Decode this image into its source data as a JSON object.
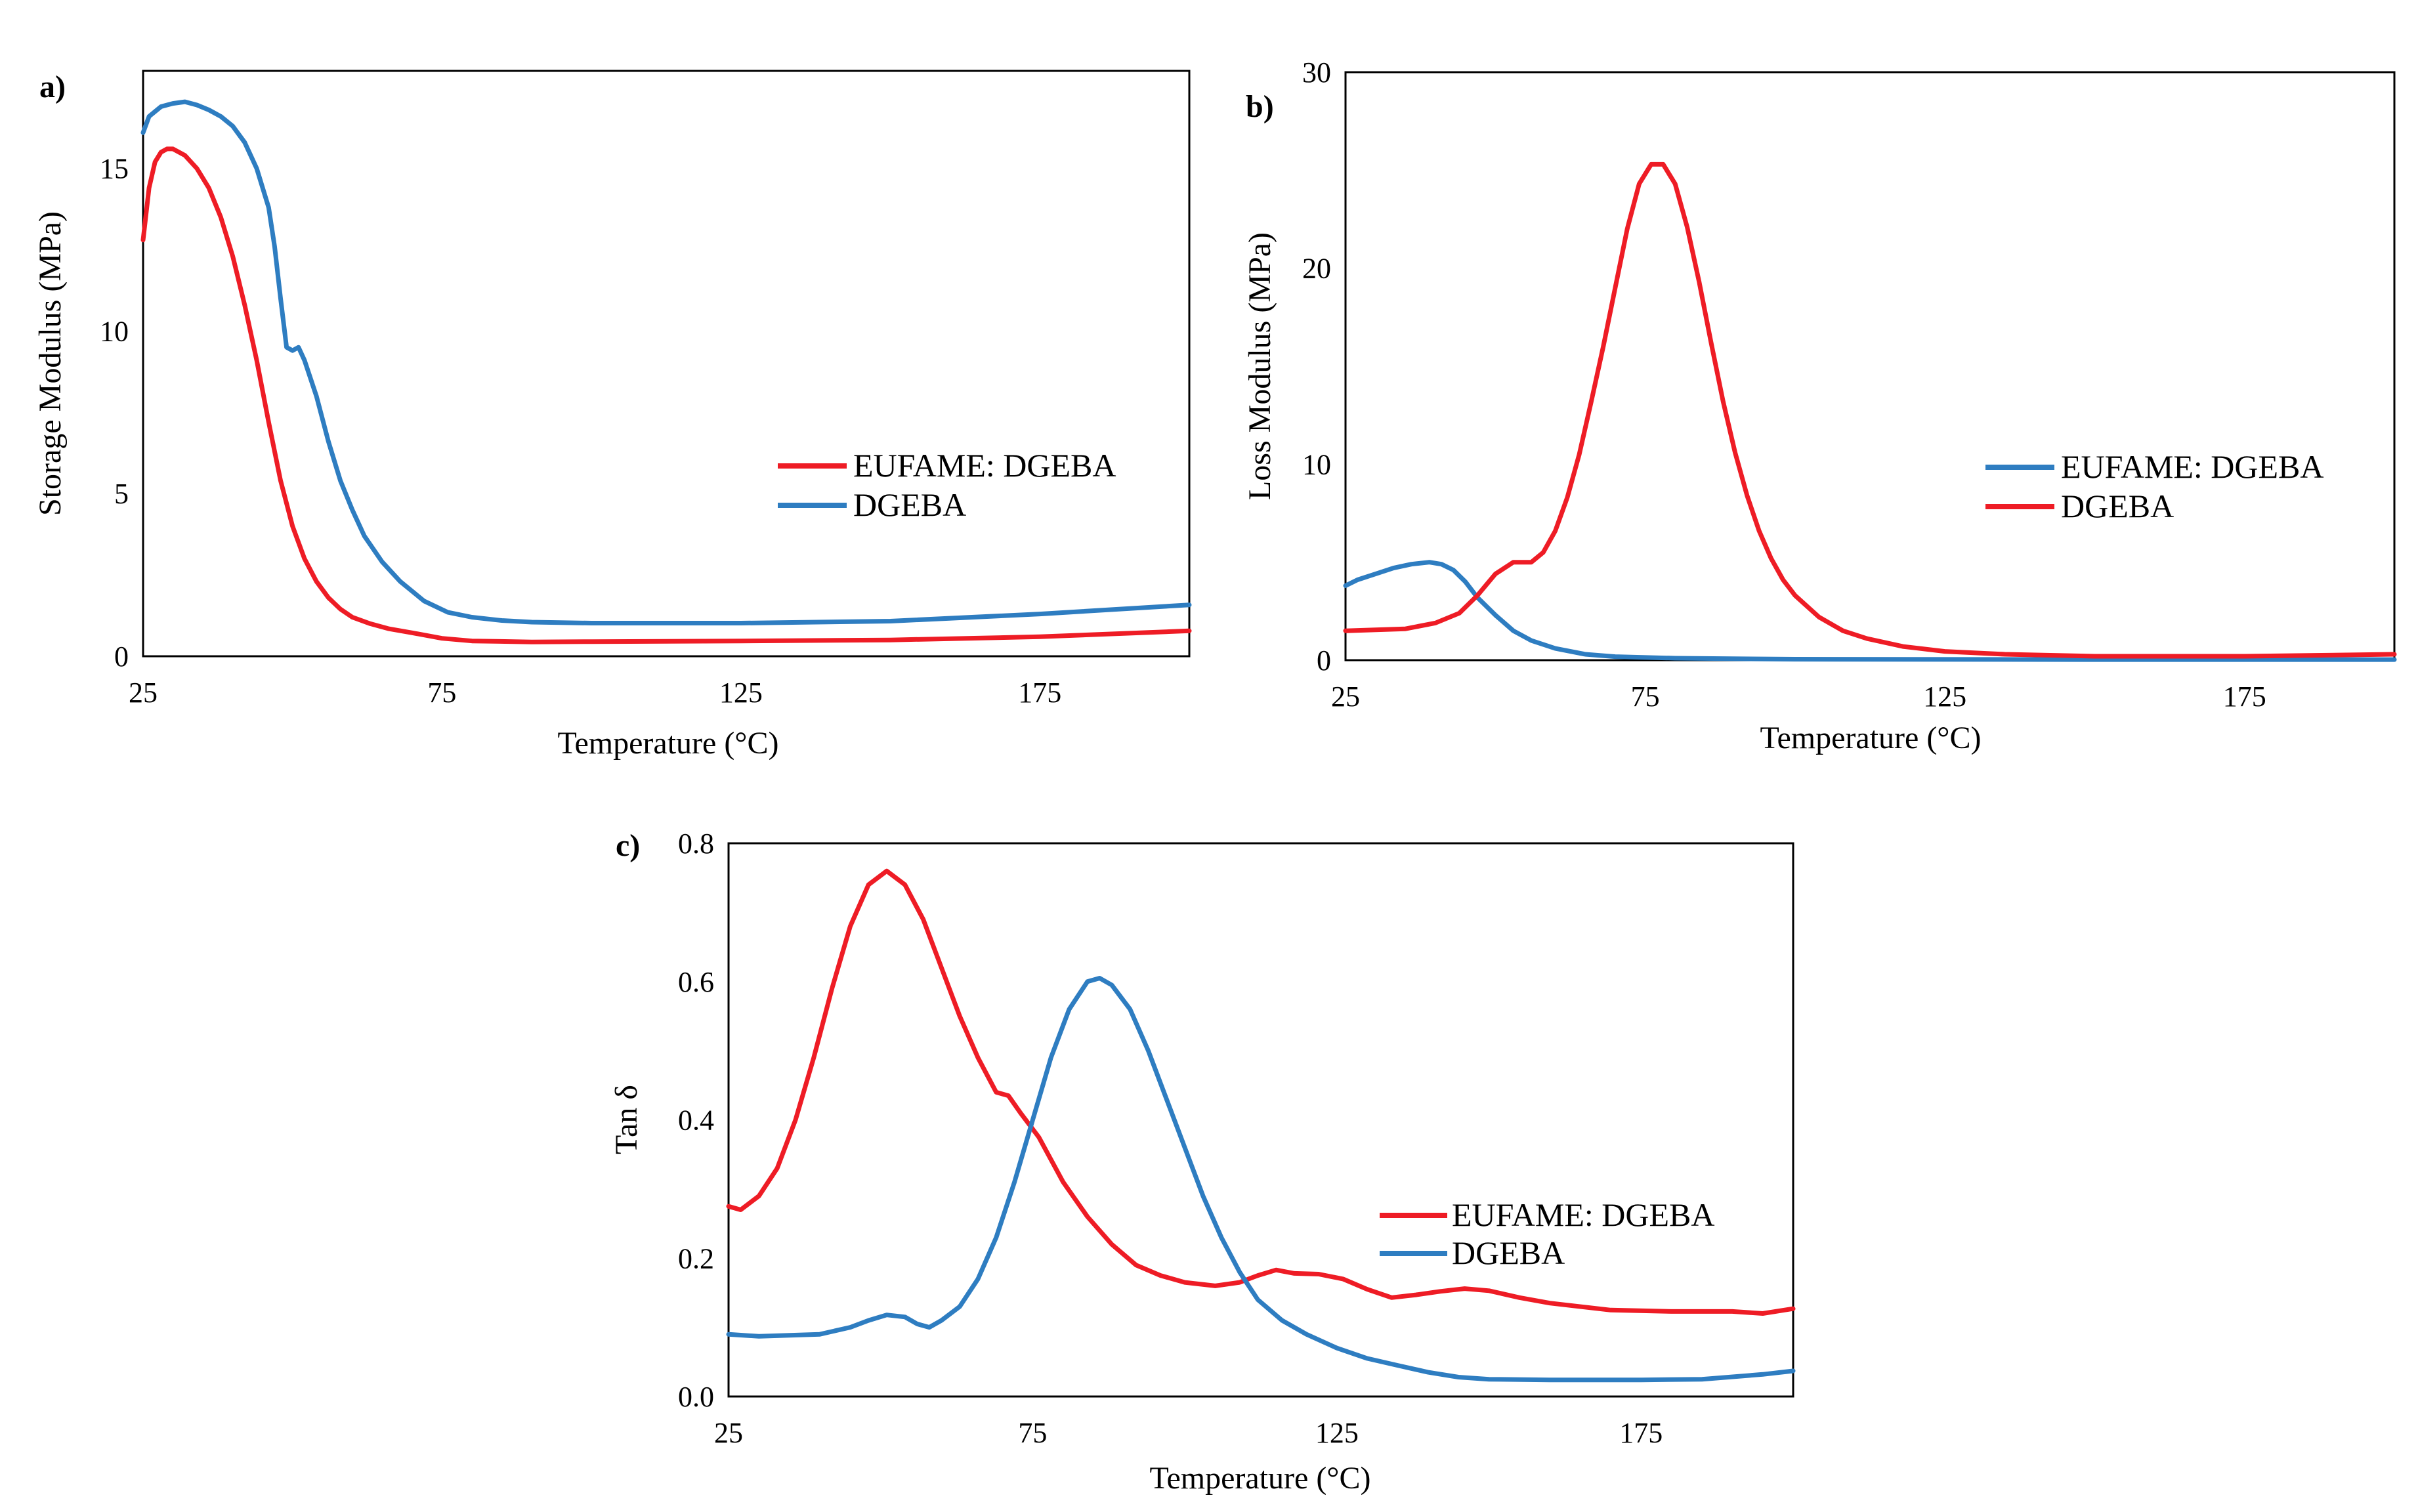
{
  "colors": {
    "red": "#ee1c25",
    "blue": "#2e7dc1",
    "axis": "#000000"
  },
  "chart_data": [
    {
      "panel": "a)",
      "type": "line",
      "xlabel": "Temperature (°C)",
      "ylabel": "Storage Modulus  (MPa)",
      "xlim": [
        25,
        200
      ],
      "ylim": [
        0,
        18
      ],
      "xticks": [
        25,
        75,
        125,
        175
      ],
      "yticks": [
        0,
        5,
        10,
        15
      ],
      "legend_position": "right-middle",
      "series": [
        {
          "name": "EUFAME: DGEBA",
          "color": "red",
          "points": [
            [
              25,
              12.8
            ],
            [
              26,
              14.4
            ],
            [
              27,
              15.2
            ],
            [
              28,
              15.5
            ],
            [
              29,
              15.6
            ],
            [
              30,
              15.6
            ],
            [
              32,
              15.4
            ],
            [
              34,
              15
            ],
            [
              36,
              14.4
            ],
            [
              38,
              13.5
            ],
            [
              40,
              12.3
            ],
            [
              42,
              10.8
            ],
            [
              44,
              9.1
            ],
            [
              46,
              7.2
            ],
            [
              48,
              5.4
            ],
            [
              50,
              4
            ],
            [
              52,
              3
            ],
            [
              54,
              2.3
            ],
            [
              56,
              1.8
            ],
            [
              58,
              1.45
            ],
            [
              60,
              1.2
            ],
            [
              63,
              1
            ],
            [
              66,
              0.85
            ],
            [
              70,
              0.72
            ],
            [
              75,
              0.55
            ],
            [
              80,
              0.47
            ],
            [
              90,
              0.44
            ],
            [
              100,
              0.45
            ],
            [
              125,
              0.47
            ],
            [
              150,
              0.5
            ],
            [
              175,
              0.6
            ],
            [
              200,
              0.78
            ]
          ]
        },
        {
          "name": "DGEBA",
          "color": "blue",
          "points": [
            [
              25,
              16.1
            ],
            [
              26,
              16.6
            ],
            [
              28,
              16.9
            ],
            [
              30,
              17
            ],
            [
              32,
              17.05
            ],
            [
              34,
              16.95
            ],
            [
              36,
              16.8
            ],
            [
              38,
              16.6
            ],
            [
              40,
              16.3
            ],
            [
              42,
              15.8
            ],
            [
              44,
              15
            ],
            [
              46,
              13.8
            ],
            [
              47,
              12.6
            ],
            [
              48,
              11
            ],
            [
              49,
              9.5
            ],
            [
              50,
              9.4
            ],
            [
              51,
              9.5
            ],
            [
              52,
              9.1
            ],
            [
              54,
              8
            ],
            [
              56,
              6.6
            ],
            [
              58,
              5.4
            ],
            [
              60,
              4.5
            ],
            [
              62,
              3.7
            ],
            [
              65,
              2.9
            ],
            [
              68,
              2.3
            ],
            [
              72,
              1.7
            ],
            [
              76,
              1.35
            ],
            [
              80,
              1.2
            ],
            [
              85,
              1.1
            ],
            [
              90,
              1.05
            ],
            [
              100,
              1.02
            ],
            [
              125,
              1.02
            ],
            [
              150,
              1.08
            ],
            [
              175,
              1.3
            ],
            [
              200,
              1.58
            ]
          ]
        }
      ]
    },
    {
      "panel": "b)",
      "type": "line",
      "xlabel": "Temperature (°C)",
      "ylabel": "Loss Modulus  (MPa)",
      "xlim": [
        25,
        200
      ],
      "ylim": [
        0,
        30
      ],
      "xticks": [
        25,
        75,
        125,
        175
      ],
      "yticks": [
        0,
        10,
        20,
        30
      ],
      "legend_position": "right-middle",
      "series": [
        {
          "name": "EUFAME: DGEBA",
          "color": "blue",
          "points": [
            [
              25,
              3.8
            ],
            [
              27,
              4.1
            ],
            [
              30,
              4.4
            ],
            [
              33,
              4.7
            ],
            [
              36,
              4.9
            ],
            [
              39,
              5
            ],
            [
              41,
              4.9
            ],
            [
              43,
              4.6
            ],
            [
              45,
              4
            ],
            [
              47,
              3.2
            ],
            [
              50,
              2.3
            ],
            [
              53,
              1.5
            ],
            [
              56,
              1
            ],
            [
              60,
              0.6
            ],
            [
              65,
              0.3
            ],
            [
              70,
              0.18
            ],
            [
              80,
              0.1
            ],
            [
              100,
              0.05
            ],
            [
              150,
              0.03
            ],
            [
              200,
              0.03
            ]
          ]
        },
        {
          "name": "DGEBA",
          "color": "red",
          "points": [
            [
              25,
              1.5
            ],
            [
              30,
              1.55
            ],
            [
              35,
              1.6
            ],
            [
              40,
              1.9
            ],
            [
              44,
              2.4
            ],
            [
              47,
              3.3
            ],
            [
              50,
              4.4
            ],
            [
              53,
              5
            ],
            [
              56,
              5
            ],
            [
              58,
              5.5
            ],
            [
              60,
              6.6
            ],
            [
              62,
              8.3
            ],
            [
              64,
              10.5
            ],
            [
              66,
              13.2
            ],
            [
              68,
              16
            ],
            [
              70,
              19
            ],
            [
              72,
              22
            ],
            [
              74,
              24.3
            ],
            [
              76,
              25.3
            ],
            [
              78,
              25.3
            ],
            [
              80,
              24.3
            ],
            [
              82,
              22.1
            ],
            [
              84,
              19.3
            ],
            [
              86,
              16.2
            ],
            [
              88,
              13.2
            ],
            [
              90,
              10.6
            ],
            [
              92,
              8.4
            ],
            [
              94,
              6.6
            ],
            [
              96,
              5.2
            ],
            [
              98,
              4.1
            ],
            [
              100,
              3.3
            ],
            [
              104,
              2.2
            ],
            [
              108,
              1.5
            ],
            [
              112,
              1.1
            ],
            [
              118,
              0.7
            ],
            [
              125,
              0.45
            ],
            [
              135,
              0.3
            ],
            [
              150,
              0.2
            ],
            [
              175,
              0.2
            ],
            [
              200,
              0.3
            ]
          ]
        }
      ]
    },
    {
      "panel": "c)",
      "type": "line",
      "xlabel": "Temperature (°C)",
      "ylabel": "Tan δ",
      "xlim": [
        25,
        200
      ],
      "ylim": [
        0,
        0.8
      ],
      "xticks": [
        25,
        75,
        125,
        175
      ],
      "yticks": [
        0.0,
        0.2,
        0.4,
        0.6,
        0.8
      ],
      "ytick_labels": [
        "0.0",
        "0.2",
        "0.4",
        "0.6",
        "0.8"
      ],
      "legend_position": "right-middle",
      "series": [
        {
          "name": "EUFAME: DGEBA",
          "color": "red",
          "points": [
            [
              25,
              0.275
            ],
            [
              27,
              0.27
            ],
            [
              30,
              0.29
            ],
            [
              33,
              0.33
            ],
            [
              36,
              0.4
            ],
            [
              39,
              0.49
            ],
            [
              42,
              0.59
            ],
            [
              45,
              0.68
            ],
            [
              48,
              0.74
            ],
            [
              51,
              0.76
            ],
            [
              54,
              0.74
            ],
            [
              57,
              0.69
            ],
            [
              60,
              0.62
            ],
            [
              63,
              0.55
            ],
            [
              66,
              0.49
            ],
            [
              69,
              0.44
            ],
            [
              71,
              0.435
            ],
            [
              73,
              0.41
            ],
            [
              76,
              0.375
            ],
            [
              80,
              0.31
            ],
            [
              84,
              0.26
            ],
            [
              88,
              0.22
            ],
            [
              92,
              0.19
            ],
            [
              96,
              0.175
            ],
            [
              100,
              0.165
            ],
            [
              105,
              0.16
            ],
            [
              109,
              0.165
            ],
            [
              112,
              0.175
            ],
            [
              115,
              0.183
            ],
            [
              118,
              0.178
            ],
            [
              122,
              0.177
            ],
            [
              126,
              0.17
            ],
            [
              130,
              0.155
            ],
            [
              134,
              0.143
            ],
            [
              138,
              0.147
            ],
            [
              142,
              0.152
            ],
            [
              146,
              0.156
            ],
            [
              150,
              0.153
            ],
            [
              155,
              0.143
            ],
            [
              160,
              0.135
            ],
            [
              170,
              0.125
            ],
            [
              180,
              0.123
            ],
            [
              190,
              0.123
            ],
            [
              195,
              0.12
            ],
            [
              200,
              0.127
            ]
          ]
        },
        {
          "name": "DGEBA",
          "color": "blue",
          "points": [
            [
              25,
              0.09
            ],
            [
              30,
              0.087
            ],
            [
              40,
              0.09
            ],
            [
              45,
              0.1
            ],
            [
              48,
              0.11
            ],
            [
              51,
              0.118
            ],
            [
              54,
              0.115
            ],
            [
              56,
              0.105
            ],
            [
              58,
              0.1
            ],
            [
              60,
              0.11
            ],
            [
              63,
              0.13
            ],
            [
              66,
              0.17
            ],
            [
              69,
              0.23
            ],
            [
              72,
              0.31
            ],
            [
              75,
              0.4
            ],
            [
              78,
              0.49
            ],
            [
              81,
              0.56
            ],
            [
              84,
              0.6
            ],
            [
              86,
              0.605
            ],
            [
              88,
              0.595
            ],
            [
              91,
              0.56
            ],
            [
              94,
              0.5
            ],
            [
              97,
              0.43
            ],
            [
              100,
              0.36
            ],
            [
              103,
              0.29
            ],
            [
              106,
              0.23
            ],
            [
              109,
              0.18
            ],
            [
              112,
              0.14
            ],
            [
              116,
              0.11
            ],
            [
              120,
              0.09
            ],
            [
              125,
              0.07
            ],
            [
              130,
              0.055
            ],
            [
              135,
              0.045
            ],
            [
              140,
              0.035
            ],
            [
              145,
              0.028
            ],
            [
              150,
              0.025
            ],
            [
              160,
              0.024
            ],
            [
              175,
              0.024
            ],
            [
              185,
              0.025
            ],
            [
              195,
              0.032
            ],
            [
              200,
              0.037
            ]
          ]
        }
      ]
    }
  ]
}
